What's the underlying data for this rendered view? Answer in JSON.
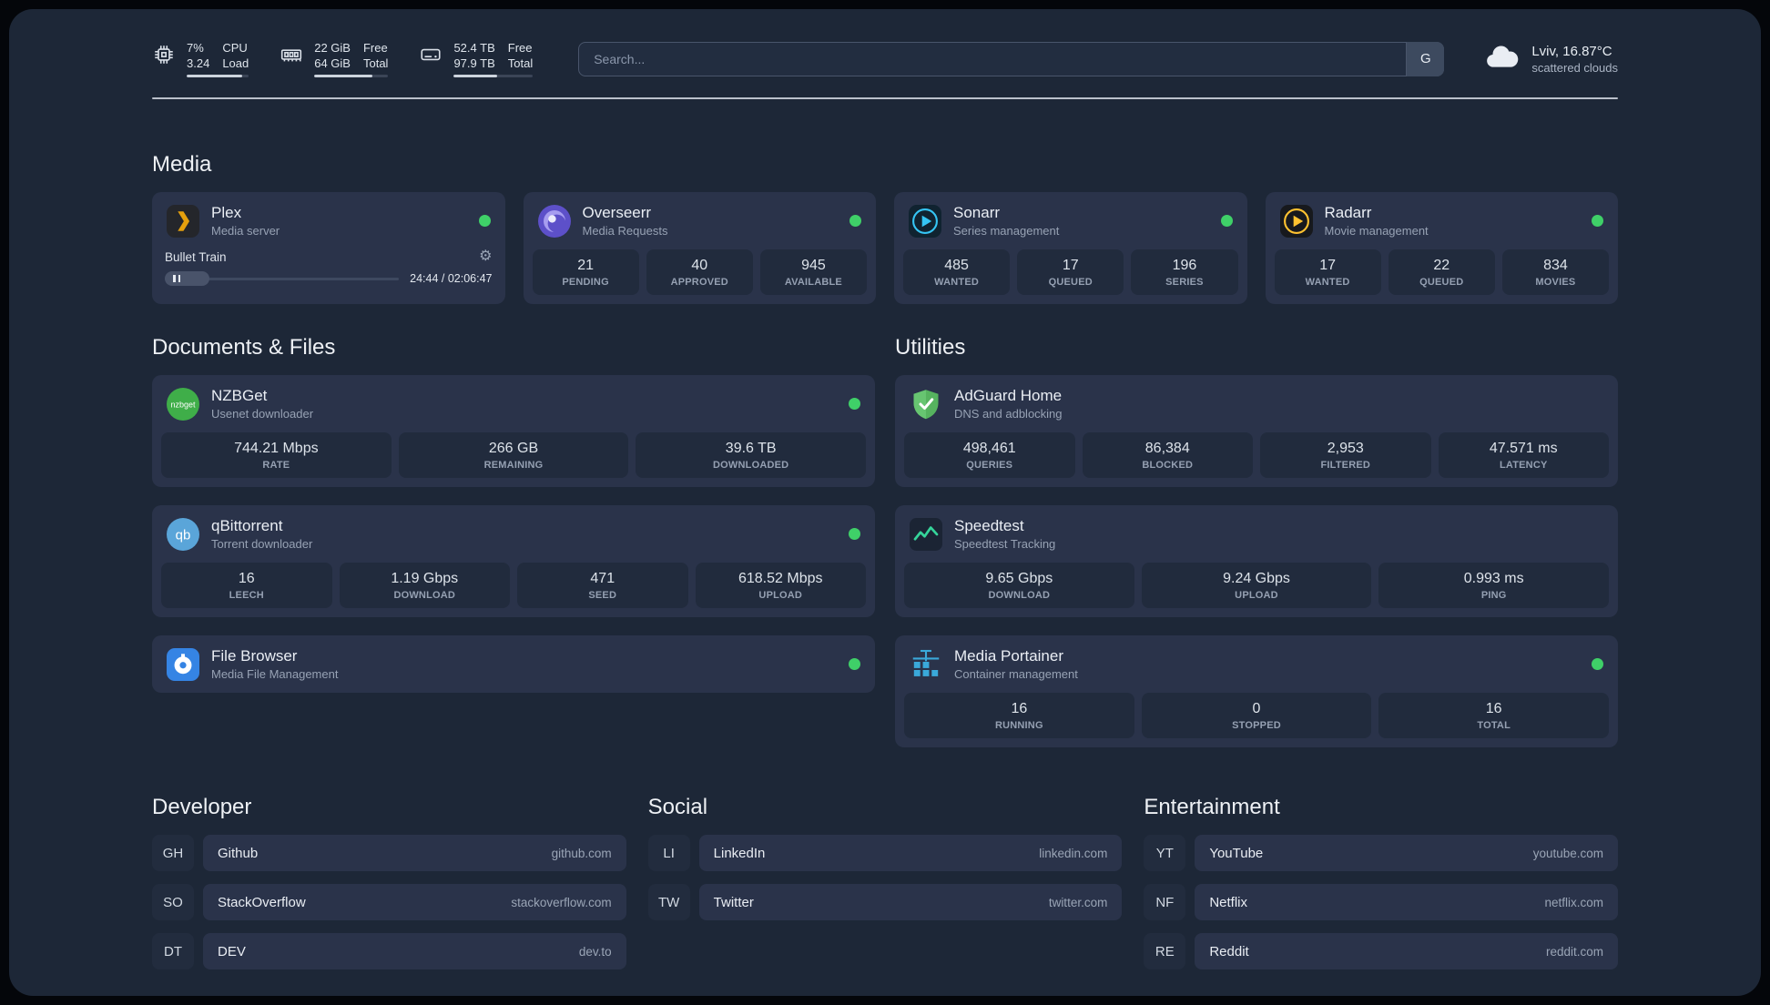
{
  "header": {
    "resources": [
      {
        "icon": "cpu-icon",
        "values": [
          "7%",
          "3.24"
        ],
        "labels": [
          "CPU",
          "Load"
        ],
        "progress": 90
      },
      {
        "icon": "memory-icon",
        "values": [
          "22 GiB",
          "64 GiB"
        ],
        "labels": [
          "Free",
          "Total"
        ],
        "progress": 78
      },
      {
        "icon": "disk-icon",
        "values": [
          "52.4 TB",
          "97.9 TB"
        ],
        "labels": [
          "Free",
          "Total"
        ],
        "progress": 55
      }
    ],
    "search": {
      "placeholder": "Search...",
      "button_label": "G"
    },
    "weather": {
      "location": "Lviv, 16.87°C",
      "condition": "scattered clouds"
    }
  },
  "sections": {
    "media": "Media",
    "documents": "Documents & Files",
    "utilities": "Utilities",
    "developer": "Developer",
    "social": "Social",
    "entertainment": "Entertainment"
  },
  "services": {
    "plex": {
      "name": "Plex",
      "desc": "Media server",
      "player_title": "Bullet Train",
      "player_time": "24:44 / 02:06:47",
      "player_progress": 19
    },
    "overseerr": {
      "name": "Overseerr",
      "desc": "Media Requests",
      "stats": [
        {
          "value": "21",
          "label": "PENDING"
        },
        {
          "value": "40",
          "label": "APPROVED"
        },
        {
          "value": "945",
          "label": "AVAILABLE"
        }
      ]
    },
    "sonarr": {
      "name": "Sonarr",
      "desc": "Series management",
      "stats": [
        {
          "value": "485",
          "label": "WANTED"
        },
        {
          "value": "17",
          "label": "QUEUED"
        },
        {
          "value": "196",
          "label": "SERIES"
        }
      ]
    },
    "radarr": {
      "name": "Radarr",
      "desc": "Movie management",
      "stats": [
        {
          "value": "17",
          "label": "WANTED"
        },
        {
          "value": "22",
          "label": "QUEUED"
        },
        {
          "value": "834",
          "label": "MOVIES"
        }
      ]
    },
    "nzbget": {
      "name": "NZBGet",
      "desc": "Usenet downloader",
      "stats": [
        {
          "value": "744.21 Mbps",
          "label": "RATE"
        },
        {
          "value": "266 GB",
          "label": "REMAINING"
        },
        {
          "value": "39.6 TB",
          "label": "DOWNLOADED"
        }
      ]
    },
    "qbittorrent": {
      "name": "qBittorrent",
      "desc": "Torrent downloader",
      "stats": [
        {
          "value": "16",
          "label": "LEECH"
        },
        {
          "value": "1.19 Gbps",
          "label": "DOWNLOAD"
        },
        {
          "value": "471",
          "label": "SEED"
        },
        {
          "value": "618.52 Mbps",
          "label": "UPLOAD"
        }
      ]
    },
    "filebrowser": {
      "name": "File Browser",
      "desc": "Media File Management"
    },
    "adguard": {
      "name": "AdGuard Home",
      "desc": "DNS and adblocking",
      "stats": [
        {
          "value": "498,461",
          "label": "QUERIES"
        },
        {
          "value": "86,384",
          "label": "BLOCKED"
        },
        {
          "value": "2,953",
          "label": "FILTERED"
        },
        {
          "value": "47.571 ms",
          "label": "LATENCY"
        }
      ]
    },
    "speedtest": {
      "name": "Speedtest",
      "desc": "Speedtest Tracking",
      "stats": [
        {
          "value": "9.65 Gbps",
          "label": "DOWNLOAD"
        },
        {
          "value": "9.24 Gbps",
          "label": "UPLOAD"
        },
        {
          "value": "0.993 ms",
          "label": "PING"
        }
      ]
    },
    "portainer": {
      "name": "Media Portainer",
      "desc": "Container management",
      "stats": [
        {
          "value": "16",
          "label": "RUNNING"
        },
        {
          "value": "0",
          "label": "STOPPED"
        },
        {
          "value": "16",
          "label": "TOTAL"
        }
      ]
    }
  },
  "bookmarks": {
    "developer": [
      {
        "abbr": "GH",
        "name": "Github",
        "url": "github.com"
      },
      {
        "abbr": "SO",
        "name": "StackOverflow",
        "url": "stackoverflow.com"
      },
      {
        "abbr": "DT",
        "name": "DEV",
        "url": "dev.to"
      }
    ],
    "social": [
      {
        "abbr": "LI",
        "name": "LinkedIn",
        "url": "linkedin.com"
      },
      {
        "abbr": "TW",
        "name": "Twitter",
        "url": "twitter.com"
      }
    ],
    "entertainment": [
      {
        "abbr": "YT",
        "name": "YouTube",
        "url": "youtube.com"
      },
      {
        "abbr": "NF",
        "name": "Netflix",
        "url": "netflix.com"
      },
      {
        "abbr": "RE",
        "name": "Reddit",
        "url": "reddit.com"
      }
    ]
  },
  "colors": {
    "status_online": "#3fd068",
    "background": "#1d2737",
    "card": "#2a334a"
  }
}
